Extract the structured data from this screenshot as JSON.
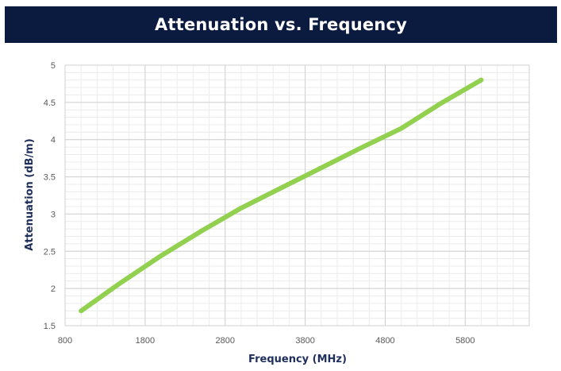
{
  "chart_data": {
    "type": "line",
    "title": "Attenuation vs. Frequency",
    "xlabel": "Frequency (MHz)",
    "ylabel": "Attenuation (dB/m)",
    "xlim": [
      800,
      6600
    ],
    "ylim": [
      1.5,
      5
    ],
    "xticks": [
      800,
      1800,
      2800,
      3800,
      4800,
      5800
    ],
    "yticks": [
      1.5,
      2,
      2.5,
      3,
      3.5,
      4,
      4.5,
      5
    ],
    "grid": true,
    "minor_grid": true,
    "legend": "none",
    "line_color": "#92d050",
    "series": [
      {
        "x": [
          1000,
          1500,
          2000,
          2500,
          3000,
          3500,
          4000,
          4500,
          5000,
          5500,
          6000
        ],
        "values": [
          1.7,
          2.08,
          2.44,
          2.77,
          3.08,
          3.35,
          3.62,
          3.89,
          4.15,
          4.49,
          4.8
        ]
      }
    ]
  }
}
